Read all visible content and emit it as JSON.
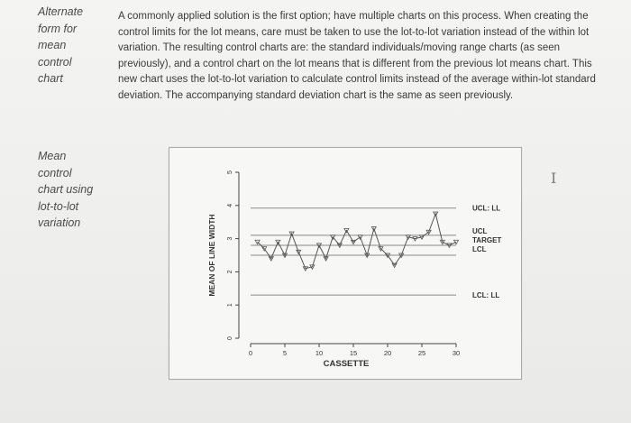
{
  "side_notes": [
    {
      "lines": "Alternate\nform for\nmean\ncontrol\nchart"
    },
    {
      "lines": "Mean\ncontrol\nchart using\nlot-to-lot\nvariation"
    }
  ],
  "paragraph": "A commonly applied solution is the first option; have multiple charts on this process. When creating the control limits for the lot means, care must be taken to use the lot-to-lot variation instead of the within lot variation. The resulting control charts are: the standard individuals/moving range charts (as seen previously), and a control chart on the lot means that is different from the previous lot means chart. This new chart uses the lot-to-lot variation to calculate control limits instead of the average within-lot standard deviation. The accompanying standard deviation chart is the same as seen previously.",
  "cursor_glyph": "I",
  "chart_data": {
    "type": "line",
    "xlabel": "CASSETTE",
    "ylabel": "MEAN OF LINE WIDTH",
    "xlim": [
      0,
      30
    ],
    "ylim": [
      0,
      5
    ],
    "x_ticks": [
      "0",
      "5",
      "10",
      "15",
      "20",
      "25",
      "30"
    ],
    "y_ticks": [
      "0",
      "1",
      "2",
      "3",
      "4",
      "5"
    ],
    "series": [
      {
        "x": [
          1,
          2,
          3,
          4,
          5,
          6,
          7,
          8,
          9,
          10,
          11,
          12,
          13,
          14,
          15,
          16,
          17,
          18,
          19,
          20,
          21,
          22,
          23,
          24,
          25,
          26,
          27,
          28,
          29,
          30
        ],
        "values": [
          2.9,
          2.7,
          2.4,
          2.9,
          2.5,
          3.15,
          2.6,
          2.1,
          2.15,
          2.8,
          2.4,
          3.05,
          2.8,
          3.25,
          2.9,
          3.05,
          2.5,
          3.3,
          2.7,
          2.5,
          2.2,
          2.5,
          3.05,
          3.0,
          3.05,
          3.2,
          3.75,
          2.9,
          2.8,
          2.9
        ]
      }
    ],
    "reference_lines": [
      {
        "label": "UCL: LL",
        "value": 3.92
      },
      {
        "label": "UCL",
        "value": 3.1
      },
      {
        "label": "TARGET",
        "value": 2.8
      },
      {
        "label": "LCL",
        "value": 2.5
      },
      {
        "label": "LCL: LL",
        "value": 1.3
      }
    ]
  }
}
